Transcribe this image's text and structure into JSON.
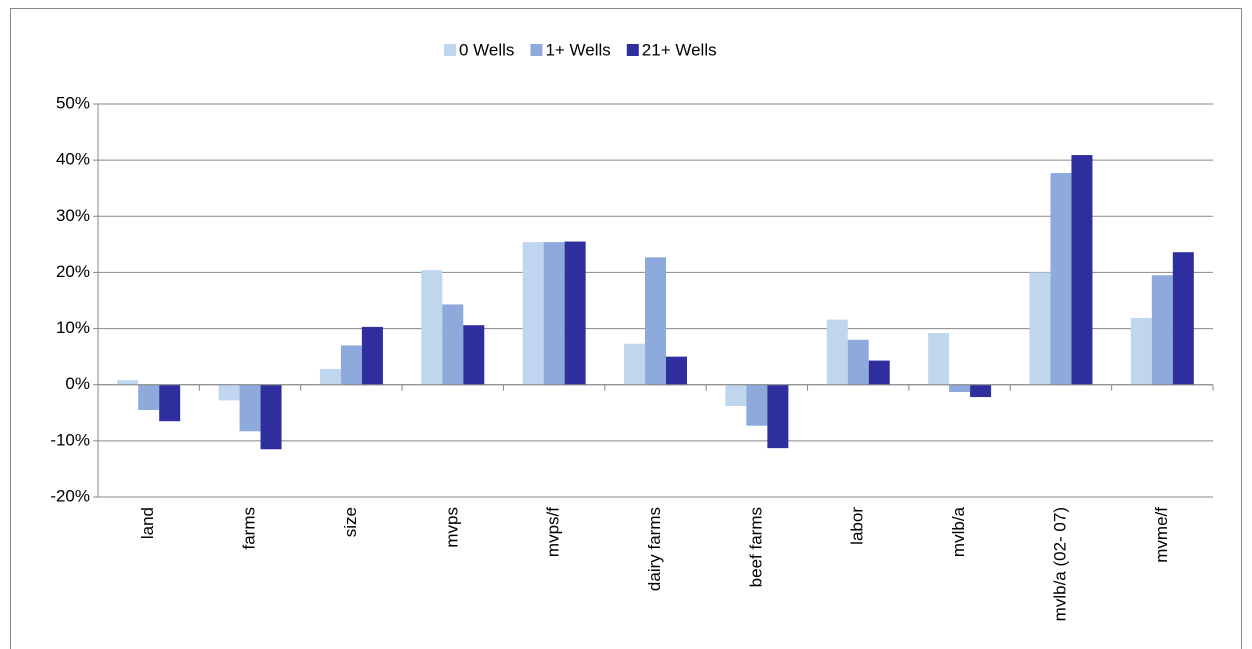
{
  "chart_data": {
    "type": "bar",
    "categories": [
      "land",
      "farms",
      "size",
      "mvps",
      "mvps/f",
      "dairy farms",
      "beef farms",
      "labor",
      "mvlb/a",
      "mvlb/a (02- 07)",
      "mvme/f"
    ],
    "series": [
      {
        "name": "0 Wells",
        "color": "#c0d6ee",
        "values": [
          0.8,
          -2.8,
          2.8,
          20.4,
          25.4,
          7.3,
          -3.8,
          11.6,
          9.2,
          20.0,
          11.9
        ]
      },
      {
        "name": "1+ Wells",
        "color": "#8eaadc",
        "values": [
          -4.5,
          -8.3,
          7.0,
          14.3,
          25.4,
          22.7,
          -7.3,
          8.0,
          -1.3,
          37.7,
          19.5
        ]
      },
      {
        "name": "21+ Wells",
        "color": "#2e2e9e",
        "values": [
          -6.5,
          -11.5,
          10.3,
          10.6,
          25.5,
          5.0,
          -11.3,
          4.3,
          -2.2,
          40.9,
          23.6
        ]
      }
    ],
    "ylim": [
      -20,
      50
    ],
    "yticks": [
      {
        "value": -20,
        "label": "-20%"
      },
      {
        "value": -10,
        "label": "-10%"
      },
      {
        "value": 0,
        "label": "0%"
      },
      {
        "value": 10,
        "label": "10%"
      },
      {
        "value": 20,
        "label": "20%"
      },
      {
        "value": 30,
        "label": "30%"
      },
      {
        "value": 40,
        "label": "40%"
      },
      {
        "value": 50,
        "label": "50%"
      }
    ],
    "grid": true,
    "legend": "top"
  }
}
